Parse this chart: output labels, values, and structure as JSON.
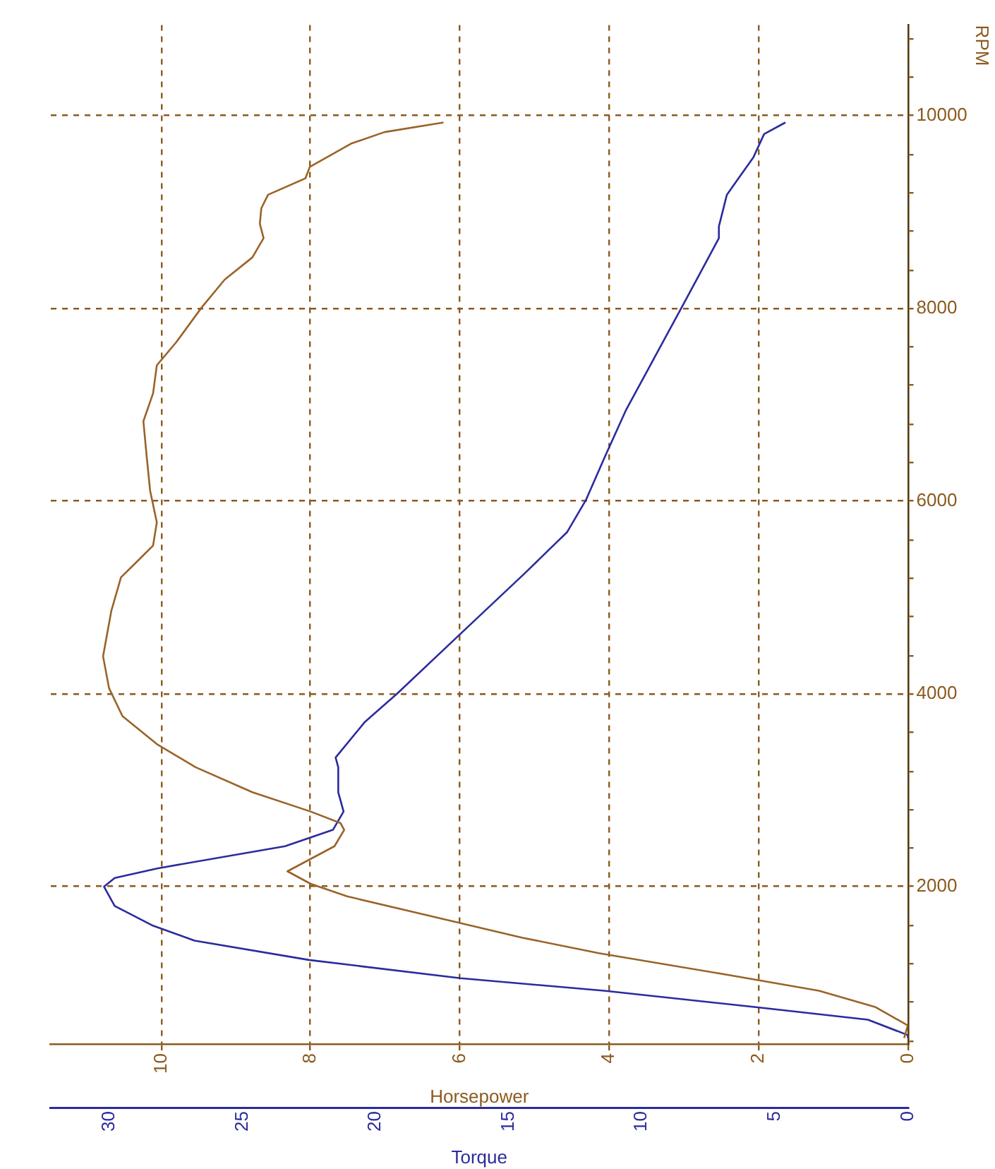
{
  "chart_data": {
    "type": "line",
    "orientation": "horizontal",
    "xlabel": "Horsepower",
    "x2label": "Torque",
    "ylabel": "RPM",
    "ylim": [
      360,
      10940
    ],
    "xlim": [
      11.48,
      0
    ],
    "x2lim": [
      32.2,
      0
    ],
    "yticks": [
      {
        "value": 400,
        "label": null
      },
      {
        "value": 800,
        "label": null
      },
      {
        "value": 1200,
        "label": null
      },
      {
        "value": 1600,
        "label": null
      },
      2000,
      {
        "value": 2400,
        "label": null
      },
      {
        "value": 2800,
        "label": null
      },
      {
        "value": 3200,
        "label": null
      },
      {
        "value": 3600,
        "label": null
      },
      4000,
      {
        "value": 4400,
        "label": null
      },
      {
        "value": 4800,
        "label": null
      },
      {
        "value": 5200,
        "label": null
      },
      {
        "value": 5600,
        "label": null
      },
      6000,
      {
        "value": 6400,
        "label": null
      },
      {
        "value": 6800,
        "label": null
      },
      {
        "value": 7200,
        "label": null
      },
      {
        "value": 7600,
        "label": null
      },
      8000,
      {
        "value": 8400,
        "label": null
      },
      {
        "value": 8800,
        "label": null
      },
      {
        "value": 9200,
        "label": null
      },
      {
        "value": 9600,
        "label": null
      },
      10000,
      {
        "value": 10400,
        "label": null
      },
      {
        "value": 10800,
        "label": null
      }
    ],
    "xticks": [
      0,
      2,
      4,
      6,
      8,
      10
    ],
    "x2ticks": [
      0,
      5,
      10,
      15,
      20,
      25,
      30
    ],
    "grid": true,
    "series": [
      {
        "color": "#9a6329",
        "x": [
          430,
          560,
          750,
          920,
          1080,
          1310,
          1470,
          1700,
          1900,
          2030,
          2160,
          2420,
          2590,
          2660,
          2780,
          2980,
          3240,
          3480,
          3770,
          4060,
          4390,
          4860,
          5210,
          5370,
          5540,
          5780,
          6110,
          6500,
          6830,
          7120,
          7410,
          7650,
          8010,
          8300,
          8530,
          8730,
          8880,
          9040,
          9180,
          9350,
          9470,
          9710,
          9830,
          9930
        ],
        "values": [
          0.05,
          0,
          0.43,
          1.19,
          2.37,
          4.14,
          5.16,
          6.42,
          7.51,
          8.0,
          8.31,
          7.68,
          7.55,
          7.6,
          8.0,
          8.78,
          9.54,
          10.06,
          10.52,
          10.7,
          10.78,
          10.67,
          10.54,
          10.33,
          10.11,
          10.06,
          10.15,
          10.2,
          10.24,
          10.11,
          10.06,
          9.8,
          9.46,
          9.15,
          8.78,
          8.63,
          8.68,
          8.66,
          8.57,
          8.07,
          8.01,
          7.46,
          7.01,
          6.22
        ]
      },
      {
        "color": "#2b2b9e",
        "axis": "x2",
        "x": [
          430,
          460,
          620,
          750,
          920,
          1050,
          1240,
          1440,
          1600,
          1800,
          2000,
          2090,
          2190,
          2420,
          2590,
          2780,
          2980,
          3240,
          3340,
          3710,
          4000,
          4600,
          5250,
          5680,
          6010,
          6450,
          6940,
          7450,
          8010,
          8420,
          8730,
          8850,
          9180,
          9570,
          9810,
          9930
        ],
        "values": [
          0,
          0,
          1.5,
          5.7,
          11.4,
          16.8,
          22.5,
          26.8,
          28.4,
          29.8,
          30.2,
          29.8,
          28.2,
          23.4,
          21.6,
          21.2,
          21.4,
          21.4,
          21.5,
          20.4,
          19.2,
          16.9,
          14.4,
          12.8,
          12.1,
          11.4,
          10.6,
          9.6,
          8.5,
          7.7,
          7.1,
          7.1,
          6.8,
          5.8,
          5.4,
          4.6
        ]
      }
    ]
  }
}
